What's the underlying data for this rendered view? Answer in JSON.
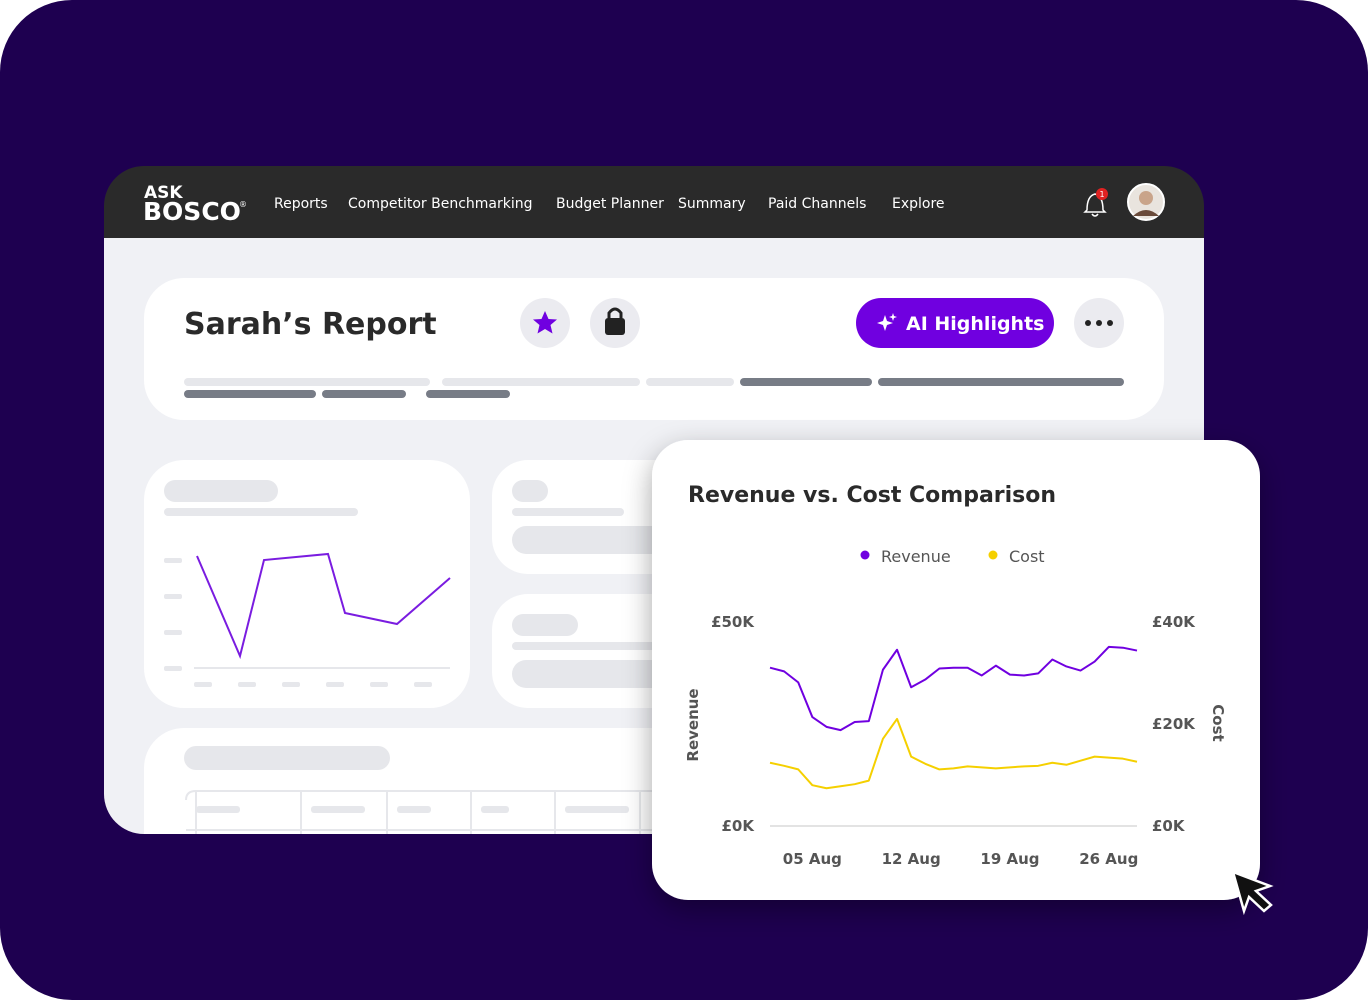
{
  "logo": {
    "top": "ASK",
    "bottom": "BOSCO",
    "mark": "®"
  },
  "nav": [
    "Reports",
    "Competitor Benchmarking",
    "Budget Planner",
    "Summary",
    "Paid Channels",
    "Explore"
  ],
  "notification_badge": 1,
  "report": {
    "title": "Sarah’s Report",
    "button": "AI Highlights"
  },
  "chart_data": {
    "type": "line",
    "title": "Revenue vs. Cost Comparison",
    "ylabel": "Revenue",
    "y2label": "Cost",
    "x": [
      2,
      3,
      4,
      5,
      6,
      7,
      8,
      9,
      10,
      11,
      12,
      13,
      14,
      15,
      16,
      17,
      18,
      19,
      20,
      21,
      22,
      23,
      24,
      25,
      26,
      27,
      28
    ],
    "xlim": [
      2,
      28
    ],
    "xticks": [
      {
        "value": 5,
        "label": "05 Aug"
      },
      {
        "value": 12,
        "label": "12 Aug"
      },
      {
        "value": 19,
        "label": "19 Aug"
      },
      {
        "value": 26,
        "label": "26 Aug"
      }
    ],
    "ylim": [
      0,
      50000
    ],
    "yticks": [
      {
        "value": 0,
        "label": "£0K"
      },
      {
        "value": 50000,
        "label": "£50K"
      }
    ],
    "y2lim": [
      0,
      40000
    ],
    "y2ticks": [
      {
        "value": 0,
        "label": "£0K"
      },
      {
        "value": 20000,
        "label": "£20K"
      },
      {
        "value": 40000,
        "label": "£40K"
      }
    ],
    "series": [
      {
        "name": "Revenue",
        "color": "#7000e0",
        "values": [
          38800,
          37900,
          35200,
          26700,
          24300,
          23500,
          25500,
          25700,
          38300,
          43200,
          34000,
          35900,
          38600,
          38800,
          38800,
          36900,
          39300,
          37100,
          36900,
          37400,
          40800,
          39100,
          38100,
          40300,
          43900,
          43700,
          43000
        ]
      },
      {
        "name": "Cost",
        "color": "#f5d000",
        "axis": "y2",
        "values": [
          12400,
          11800,
          11100,
          8000,
          7400,
          7800,
          8200,
          8900,
          17100,
          21000,
          13600,
          12200,
          11100,
          11300,
          11700,
          11500,
          11300,
          11500,
          11700,
          11800,
          12400,
          12000,
          12800,
          13600,
          13400,
          13200,
          12600
        ]
      }
    ]
  }
}
